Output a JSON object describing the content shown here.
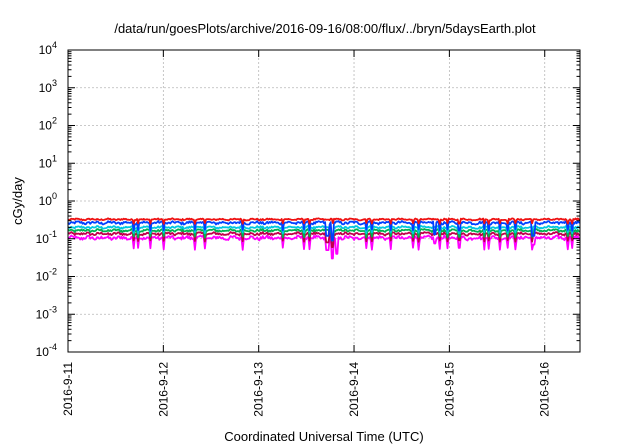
{
  "chart_data": {
    "type": "line",
    "title": "/data/run/goesPlots/archive/2016-09-16/08:00/flux/../bryn/5daysEarth.plot",
    "xlabel": "Coordinated Universal Time (UTC)",
    "ylabel": "cGy/day",
    "yscale": "log",
    "ylim": [
      0.0001,
      10000
    ],
    "xlim_days": [
      0,
      5.37
    ],
    "grid": true,
    "legend": "none",
    "x_ticks": [
      {
        "day": 0,
        "label": "2016-9-11"
      },
      {
        "day": 1,
        "label": "2016-9-12"
      },
      {
        "day": 2,
        "label": "2016-9-13"
      },
      {
        "day": 3,
        "label": "2016-9-14"
      },
      {
        "day": 4,
        "label": "2016-9-15"
      },
      {
        "day": 5,
        "label": "2016-9-16"
      }
    ],
    "y_ticks": [
      {
        "value": 0.0001,
        "base": "10",
        "exp": "-4"
      },
      {
        "value": 0.001,
        "base": "10",
        "exp": "-3"
      },
      {
        "value": 0.01,
        "base": "10",
        "exp": "-2"
      },
      {
        "value": 0.1,
        "base": "10",
        "exp": "-1"
      },
      {
        "value": 1,
        "base": "10",
        "exp": "0"
      },
      {
        "value": 10,
        "base": "10",
        "exp": "1"
      },
      {
        "value": 100,
        "base": "10",
        "exp": "2"
      },
      {
        "value": 1000,
        "base": "10",
        "exp": "3"
      },
      {
        "value": 10000,
        "base": "10",
        "exp": "4"
      }
    ],
    "series": [
      {
        "color": "#ff00ff",
        "base": 0.105,
        "amp": 0.14,
        "dips": [
          {
            "day": 2.72,
            "v": 0.05
          },
          {
            "day": 2.77,
            "v": 0.03
          },
          {
            "day": 2.82,
            "v": 0.04
          },
          {
            "day": 3.85,
            "v": 0.075
          },
          {
            "day": 4.88,
            "v": 0.07
          }
        ]
      },
      {
        "color": "#c0004a",
        "base": 0.135,
        "amp": 0.1,
        "dips": [
          {
            "day": 2.72,
            "v": 0.08
          },
          {
            "day": 2.77,
            "v": 0.06
          }
        ]
      },
      {
        "color": "#00b050",
        "base": 0.165,
        "amp": 0.09,
        "dips": [
          {
            "day": 2.77,
            "v": 0.09
          }
        ]
      },
      {
        "color": "#00c8e0",
        "base": 0.2,
        "amp": 0.08,
        "dips": [
          {
            "day": 2.77,
            "v": 0.11
          }
        ]
      },
      {
        "color": "#0040ff",
        "base": 0.265,
        "amp": 0.1,
        "dips": [
          {
            "day": 2.72,
            "v": 0.12
          },
          {
            "day": 2.77,
            "v": 0.09
          },
          {
            "day": 3.85,
            "v": 0.13
          },
          {
            "day": 4.88,
            "v": 0.12
          }
        ]
      },
      {
        "color": "#ee1111",
        "base": 0.325,
        "amp": 0.06,
        "dips": []
      }
    ]
  }
}
